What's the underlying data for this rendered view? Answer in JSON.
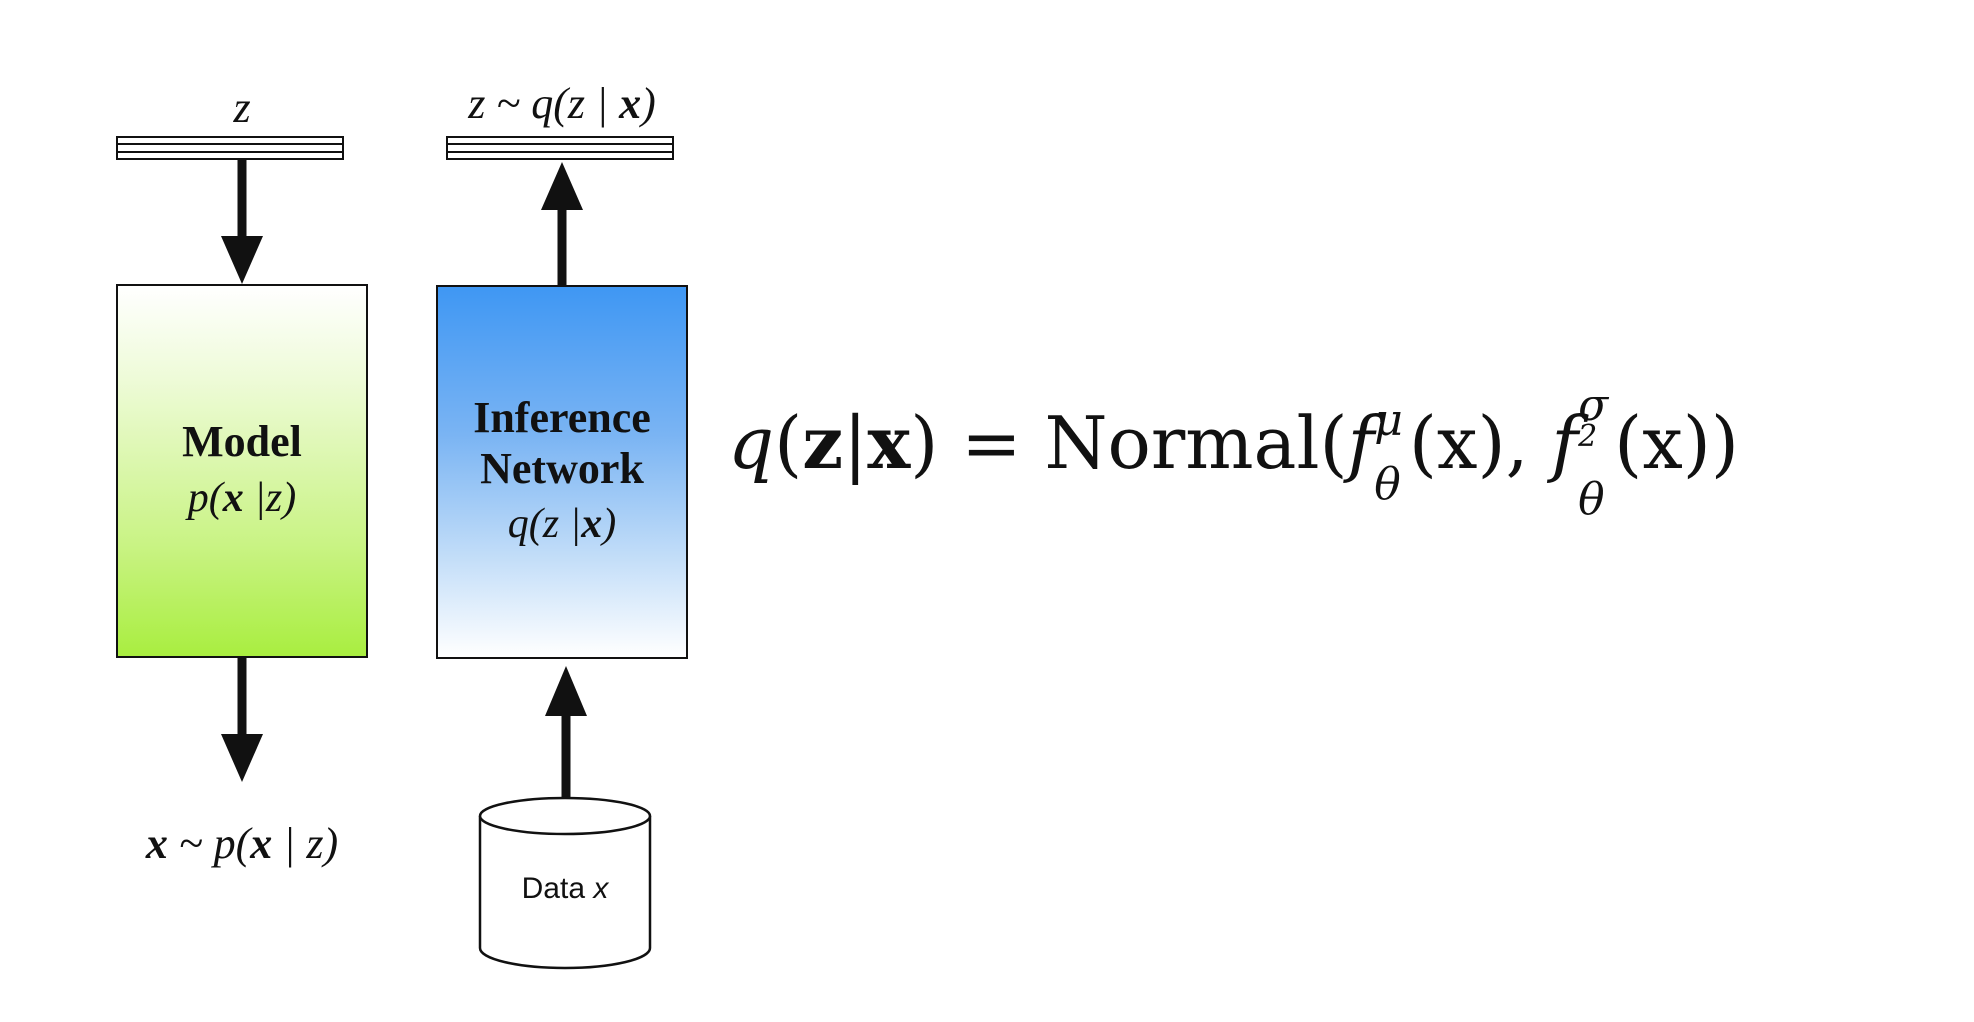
{
  "model": {
    "top_label": "z",
    "title": "Model",
    "sub_p": "p(",
    "sub_x": "x",
    "sub_rest": " |z)",
    "bottom_x": "x",
    "bottom_rest": " ~ p(",
    "bottom_x2": "x",
    "bottom_end": " | z)"
  },
  "inference": {
    "top_pre": "z ~ q(z | ",
    "top_x": "x",
    "top_end": ")",
    "title_line1": "Inference",
    "title_line2": "Network",
    "sub_pre": "q(z |",
    "sub_x": "x",
    "sub_end": ")"
  },
  "data_store": {
    "label": "Data ",
    "var": "x"
  },
  "equation": {
    "q": "q",
    "open": "(",
    "z": "z",
    "bar": "|",
    "x": "x",
    "close_eq": ") = ",
    "normal": "Normal(",
    "f1": "f",
    "mu": "μ",
    "theta1": "θ",
    "arg1": "(x), ",
    "f2": "f",
    "sigma": "σ",
    "sq": "2",
    "theta2": "θ",
    "arg2": "(x))"
  },
  "colors": {
    "model_fill_top": "#ffffff",
    "model_fill_bottom": "#a9ee40",
    "inference_fill_top": "#3f97f3",
    "inference_fill_bottom": "#ffffff",
    "stroke": "#111111"
  }
}
